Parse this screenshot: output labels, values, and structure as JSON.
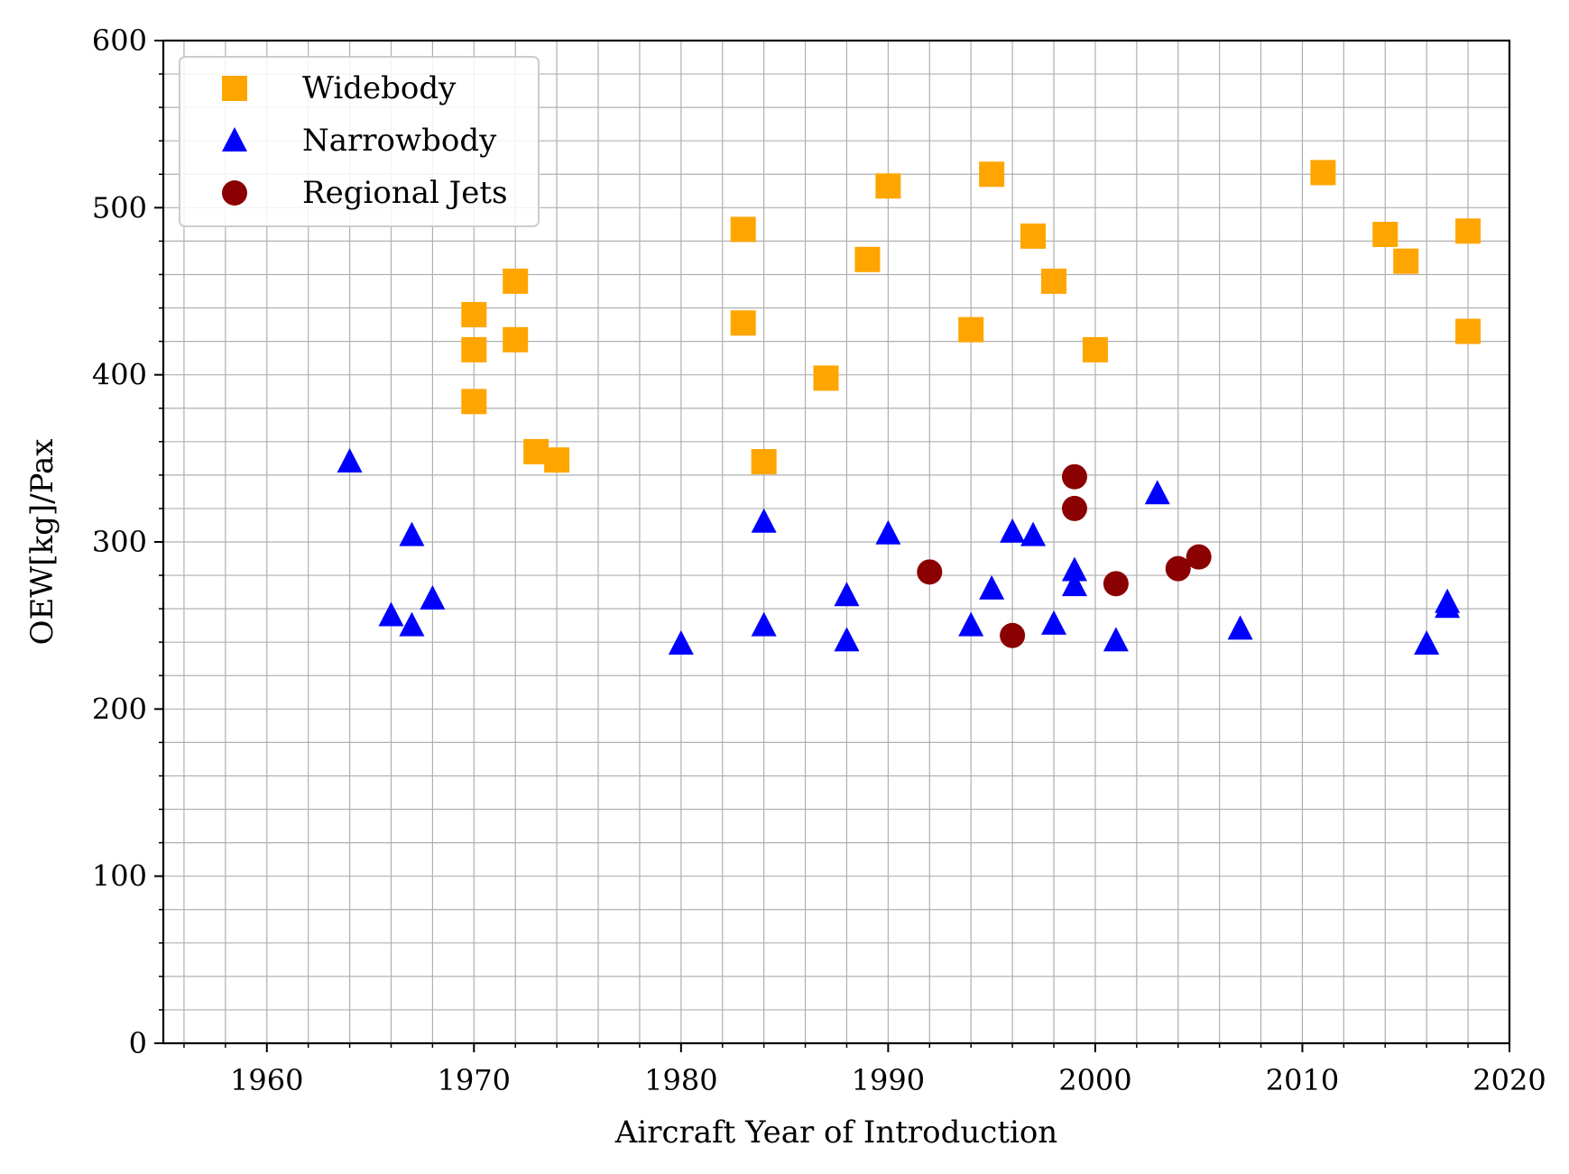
{
  "chart_data": {
    "type": "scatter",
    "title": "",
    "xlabel": "Aircraft Year of Introduction",
    "ylabel": "OEW[kg]/Pax",
    "xlim": [
      1955,
      2020
    ],
    "ylim": [
      0,
      600
    ],
    "x_ticks": [
      1960,
      1970,
      1980,
      1990,
      2000,
      2010,
      2020
    ],
    "y_ticks": [
      0,
      100,
      200,
      300,
      400,
      500,
      600
    ],
    "x_tick_labels": [
      "1960",
      "1970",
      "1980",
      "1990",
      "2000",
      "2010",
      "2020"
    ],
    "y_tick_labels": [
      "0",
      "100",
      "200",
      "300",
      "400",
      "500",
      "600"
    ],
    "grid": true,
    "minor_grid": true,
    "legend_position": "top-left",
    "series": [
      {
        "name": "Widebody",
        "marker": "square",
        "color": "#FFA500",
        "points": [
          [
            1970,
            436
          ],
          [
            1970,
            415
          ],
          [
            1970,
            384
          ],
          [
            1972,
            456
          ],
          [
            1972,
            421
          ],
          [
            1973,
            354
          ],
          [
            1974,
            349
          ],
          [
            1983,
            487
          ],
          [
            1983,
            431
          ],
          [
            1984,
            348
          ],
          [
            1987,
            398
          ],
          [
            1989,
            469
          ],
          [
            1990,
            513
          ],
          [
            1994,
            427
          ],
          [
            1995,
            520
          ],
          [
            1997,
            483
          ],
          [
            1998,
            456
          ],
          [
            2000,
            415
          ],
          [
            2011,
            521
          ],
          [
            2014,
            484
          ],
          [
            2015,
            468
          ],
          [
            2018,
            486
          ],
          [
            2018,
            426
          ]
        ]
      },
      {
        "name": "Narrowbody",
        "marker": "triangle",
        "color": "#0000FF",
        "points": [
          [
            1964,
            348
          ],
          [
            1966,
            256
          ],
          [
            1967,
            304
          ],
          [
            1967,
            250
          ],
          [
            1968,
            266
          ],
          [
            1980,
            239
          ],
          [
            1984,
            312
          ],
          [
            1984,
            250
          ],
          [
            1988,
            268
          ],
          [
            1988,
            241
          ],
          [
            1990,
            305
          ],
          [
            1994,
            250
          ],
          [
            1995,
            272
          ],
          [
            1996,
            306
          ],
          [
            1997,
            304
          ],
          [
            1998,
            251
          ],
          [
            1999,
            283
          ],
          [
            1999,
            274
          ],
          [
            2001,
            241
          ],
          [
            2003,
            329
          ],
          [
            2007,
            248
          ],
          [
            2016,
            239
          ],
          [
            2017,
            264
          ],
          [
            2017,
            261
          ]
        ]
      },
      {
        "name": "Regional Jets",
        "marker": "circle",
        "color": "#8B0000",
        "points": [
          [
            1992,
            282
          ],
          [
            1996,
            244
          ],
          [
            1999,
            339
          ],
          [
            1999,
            320
          ],
          [
            2001,
            275
          ],
          [
            2004,
            284
          ],
          [
            2005,
            291
          ]
        ]
      }
    ]
  }
}
